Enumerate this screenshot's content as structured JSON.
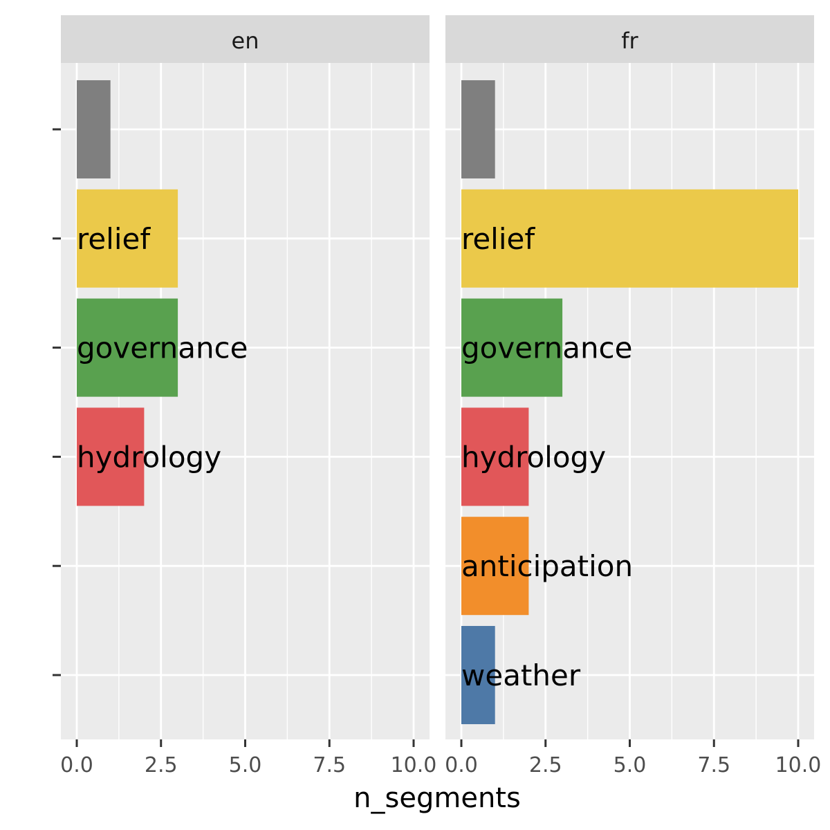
{
  "chart_data": {
    "type": "bar",
    "orientation": "horizontal",
    "xlabel": "n_segments",
    "ylabel": "",
    "xlim": [
      0,
      10
    ],
    "x_ticks": [
      "0.0",
      "2.5",
      "5.0",
      "7.5",
      "10.0"
    ],
    "x_tick_values": [
      0,
      2.5,
      5,
      7.5,
      10
    ],
    "grid": true,
    "legend": "none",
    "categories": [
      "",
      "relief",
      "governance",
      "hydrology",
      "anticipation",
      "weather"
    ],
    "colors": {
      "": "#7f7f7f",
      "relief": "#ebc94a",
      "governance": "#59a14f",
      "hydrology": "#e15759",
      "anticipation": "#f28e2b",
      "weather": "#4e79a7"
    },
    "facets": [
      {
        "label": "en",
        "bars": [
          {
            "category": "",
            "value": 1
          },
          {
            "category": "relief",
            "value": 3
          },
          {
            "category": "governance",
            "value": 3
          },
          {
            "category": "hydrology",
            "value": 2
          }
        ]
      },
      {
        "label": "fr",
        "bars": [
          {
            "category": "",
            "value": 1
          },
          {
            "category": "relief",
            "value": 10
          },
          {
            "category": "governance",
            "value": 3
          },
          {
            "category": "hydrology",
            "value": 2
          },
          {
            "category": "anticipation",
            "value": 2
          },
          {
            "category": "weather",
            "value": 1
          }
        ]
      }
    ]
  }
}
